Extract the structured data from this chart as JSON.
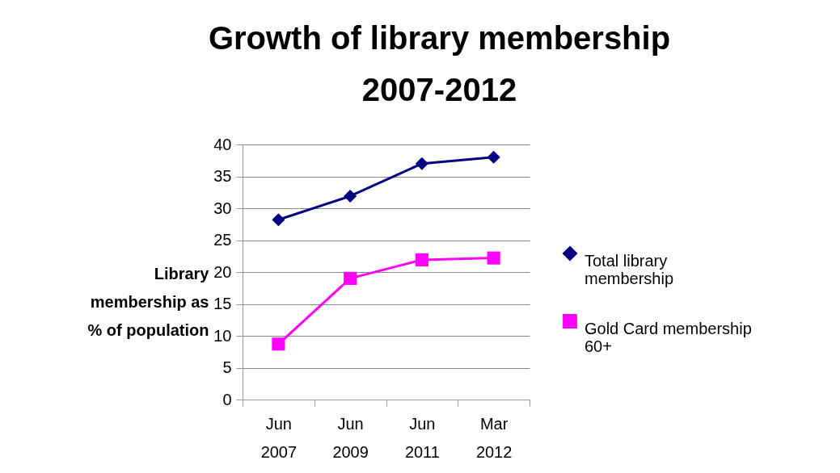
{
  "chart_data": {
    "type": "line",
    "title": "Growth of library membership 2007-2012",
    "ylabel": "Library membership as % of population",
    "categories": [
      "Jun 2007",
      "Jun 2009",
      "Jun 2011",
      "Mar 2012"
    ],
    "series": [
      {
        "name": "Total library membership",
        "color": "#000080",
        "marker": "diamond",
        "values": [
          28.2,
          31.9,
          37,
          38
        ]
      },
      {
        "name": "Gold Card membership 60+",
        "color": "#ff00ff",
        "marker": "square",
        "values": [
          8.7,
          19,
          21.9,
          22.2
        ]
      }
    ],
    "ylim": [
      0,
      40
    ],
    "yticks": [
      0,
      5,
      10,
      15,
      20,
      25,
      30,
      35,
      40
    ],
    "grid": "y",
    "legend": "right",
    "line_style": "solid"
  }
}
